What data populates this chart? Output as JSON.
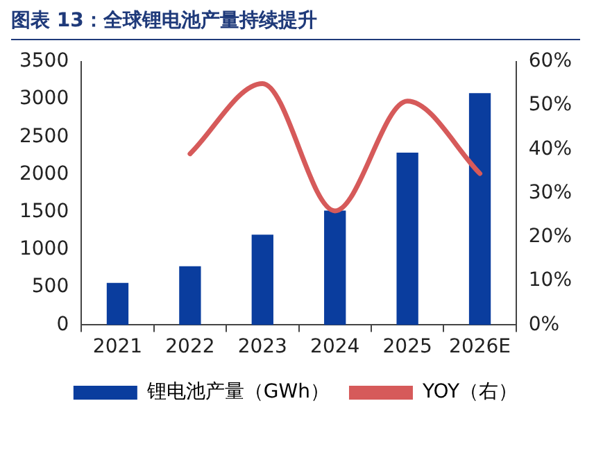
{
  "chart_data": {
    "type": "bar",
    "title": "图表 13：全球锂电池产量持续提升",
    "categories": [
      "2021",
      "2022",
      "2023",
      "2024",
      "2025",
      "2026E"
    ],
    "series": [
      {
        "name": "锂电池产量（GWh）",
        "color": "#0a3d9e",
        "values": [
          560,
          780,
          1200,
          1520,
          2290,
          3080
        ]
      },
      {
        "name": "YOY（右）",
        "type": "line",
        "axis": "y2",
        "color": "#d65a5a",
        "values": [
          null,
          39,
          55,
          26,
          51,
          34.5
        ]
      }
    ],
    "ylim": [
      0,
      3500
    ],
    "yticks": [
      0,
      500,
      1000,
      1500,
      2000,
      2500,
      3000,
      3500
    ],
    "y2lim": [
      0,
      60
    ],
    "y2ticks": [
      {
        "value": 0,
        "label": "0%"
      },
      {
        "value": 10,
        "label": "10%"
      },
      {
        "value": 20,
        "label": "20%"
      },
      {
        "value": 30,
        "label": "30%"
      },
      {
        "value": 40,
        "label": "40%"
      },
      {
        "value": 50,
        "label": "50%"
      },
      {
        "value": 60,
        "label": "60%"
      }
    ],
    "grid": false,
    "legend": "bottom",
    "marker": "none",
    "line_style": "solid"
  }
}
